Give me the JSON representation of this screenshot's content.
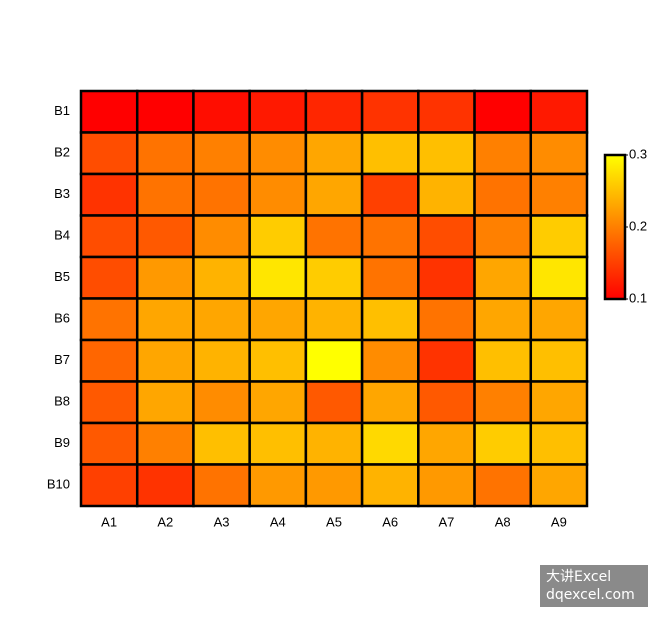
{
  "chart_data": {
    "type": "heatmap",
    "x": [
      "A1",
      "A2",
      "A3",
      "A4",
      "A5",
      "A6",
      "A7",
      "A8",
      "A9"
    ],
    "y": [
      "B1",
      "B2",
      "B3",
      "B4",
      "B5",
      "B6",
      "B7",
      "B8",
      "B9",
      "B10"
    ],
    "z": [
      [
        0.1,
        0.1,
        0.11,
        0.12,
        0.13,
        0.14,
        0.14,
        0.1,
        0.12
      ],
      [
        0.16,
        0.19,
        0.2,
        0.21,
        0.23,
        0.25,
        0.25,
        0.2,
        0.21
      ],
      [
        0.14,
        0.19,
        0.19,
        0.21,
        0.23,
        0.15,
        0.24,
        0.19,
        0.2
      ],
      [
        0.16,
        0.17,
        0.21,
        0.26,
        0.19,
        0.19,
        0.16,
        0.2,
        0.26
      ],
      [
        0.16,
        0.22,
        0.24,
        0.28,
        0.26,
        0.19,
        0.14,
        0.23,
        0.28
      ],
      [
        0.19,
        0.23,
        0.23,
        0.23,
        0.24,
        0.25,
        0.19,
        0.23,
        0.23
      ],
      [
        0.18,
        0.23,
        0.24,
        0.25,
        0.3,
        0.21,
        0.14,
        0.25,
        0.25
      ],
      [
        0.17,
        0.23,
        0.21,
        0.23,
        0.17,
        0.23,
        0.17,
        0.2,
        0.23
      ],
      [
        0.17,
        0.2,
        0.25,
        0.25,
        0.24,
        0.27,
        0.23,
        0.26,
        0.25
      ],
      [
        0.15,
        0.14,
        0.19,
        0.22,
        0.22,
        0.24,
        0.22,
        0.19,
        0.23
      ]
    ],
    "zlim": [
      0.1,
      0.3
    ],
    "zticks": [
      0.1,
      0.2,
      0.3
    ],
    "colors": [
      "#ff0000",
      "#ffff00"
    ]
  },
  "watermark": [
    "大讲Excel",
    "dqexcel.com"
  ]
}
